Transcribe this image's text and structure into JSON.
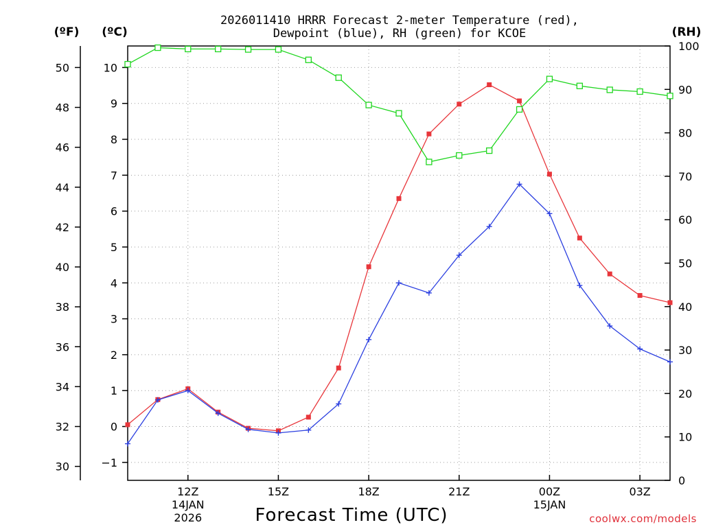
{
  "chart_data": {
    "type": "line",
    "title_line1": "2026011410 HRRR Forecast 2-meter Temperature (red),",
    "title_line2": "Dewpoint (blue), RH (green) for KCOE",
    "xlabel": "Forecast Time (UTC)",
    "credit": "coolwx.com/models",
    "units": {
      "fahrenheit": "(ºF)",
      "celsius": "(ºC)",
      "rh": "(RH)"
    },
    "x": [
      10,
      11,
      12,
      13,
      14,
      15,
      16,
      17,
      18,
      19,
      20,
      21,
      22,
      23,
      24,
      25,
      26,
      27,
      28
    ],
    "xlim": [
      10,
      28
    ],
    "x_ticks": [
      {
        "x": 12,
        "label": "12Z",
        "sub1": "14JAN",
        "sub2": "2026"
      },
      {
        "x": 15,
        "label": "15Z",
        "sub1": "",
        "sub2": ""
      },
      {
        "x": 18,
        "label": "18Z",
        "sub1": "",
        "sub2": ""
      },
      {
        "x": 21,
        "label": "21Z",
        "sub1": "",
        "sub2": ""
      },
      {
        "x": 24,
        "label": "00Z",
        "sub1": "15JAN",
        "sub2": ""
      },
      {
        "x": 27,
        "label": "03Z",
        "sub1": "",
        "sub2": ""
      }
    ],
    "ylim_c": [
      -1.5,
      10.6
    ],
    "yticks_c": [
      "−1",
      "0",
      "1",
      "2",
      "3",
      "4",
      "5",
      "6",
      "7",
      "8",
      "9",
      "10"
    ],
    "yticks_c_values": [
      -1,
      0,
      1,
      2,
      3,
      4,
      5,
      6,
      7,
      8,
      9,
      10
    ],
    "yticks_f": [
      "30",
      "32",
      "34",
      "36",
      "38",
      "40",
      "42",
      "44",
      "46",
      "48",
      "50"
    ],
    "yticks_f_values": [
      30,
      32,
      34,
      36,
      38,
      40,
      42,
      44,
      46,
      48,
      50
    ],
    "ylim_rh": [
      0,
      100
    ],
    "yticks_rh": [
      "0",
      "10",
      "20",
      "30",
      "40",
      "50",
      "60",
      "70",
      "80",
      "90",
      "100"
    ],
    "yticks_rh_values": [
      0,
      10,
      20,
      30,
      40,
      50,
      60,
      70,
      80,
      90,
      100
    ],
    "series": [
      {
        "name": "Temperature",
        "axis": "celsius",
        "color": "#e8363b",
        "marker": "filled-square",
        "values": [
          0.05,
          0.75,
          1.05,
          0.4,
          -0.05,
          -0.12,
          0.26,
          1.63,
          4.45,
          6.35,
          8.15,
          8.98,
          9.52,
          9.07,
          7.03,
          5.25,
          4.25,
          3.65,
          3.45
        ]
      },
      {
        "name": "Dewpoint",
        "axis": "celsius",
        "color": "#2b3fe0",
        "marker": "plus",
        "values": [
          -0.48,
          0.74,
          1.0,
          0.37,
          -0.08,
          -0.18,
          -0.1,
          0.63,
          2.42,
          4.0,
          3.72,
          4.77,
          5.57,
          6.75,
          5.93,
          3.93,
          2.8,
          2.16,
          1.8
        ]
      },
      {
        "name": "RH",
        "axis": "rh",
        "color": "#1fd61f",
        "marker": "open-square",
        "values": [
          95.8,
          99.6,
          99.3,
          99.3,
          99.2,
          99.2,
          96.8,
          92.7,
          86.4,
          84.5,
          73.3,
          74.8,
          75.9,
          85.4,
          92.4,
          90.8,
          89.9,
          89.5,
          88.5
        ]
      }
    ]
  }
}
